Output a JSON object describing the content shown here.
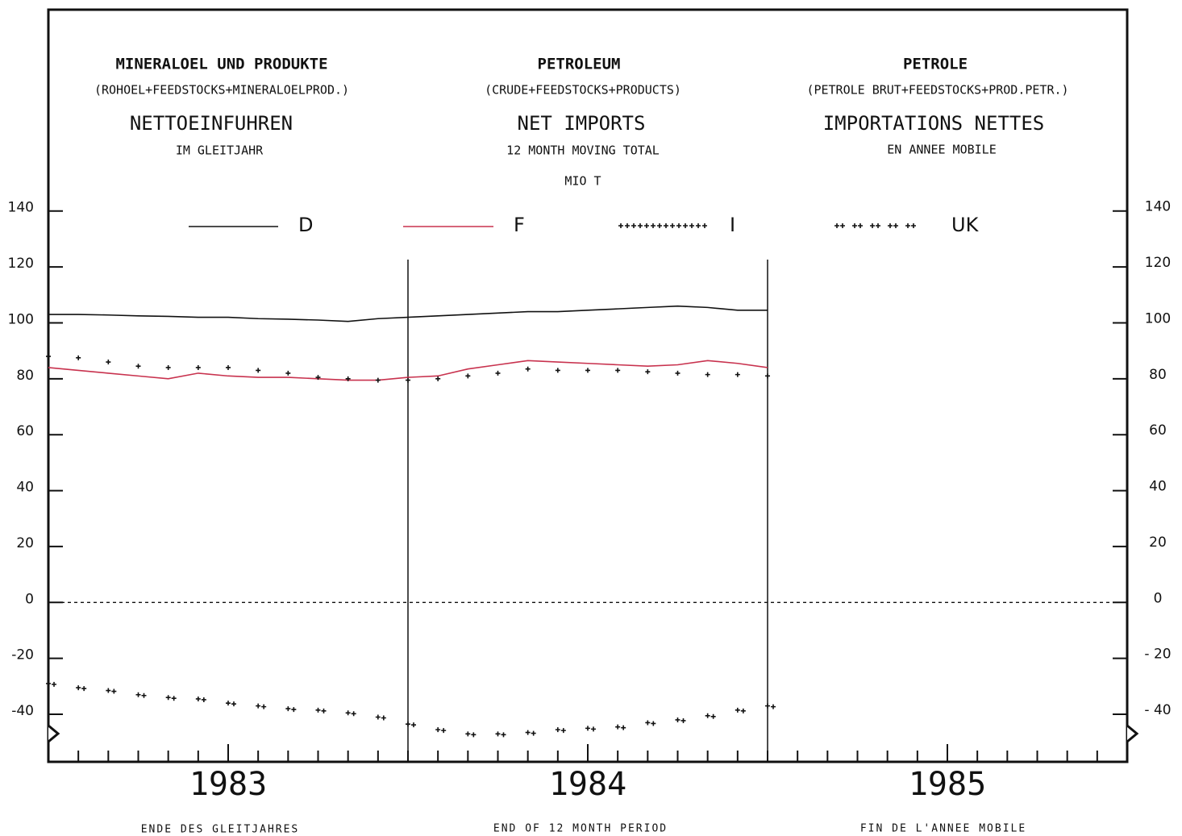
{
  "chart_data": {
    "type": "line",
    "headers": [
      {
        "title": "MINERALOEL UND PRODUKTE",
        "subtitle": "(ROHOEL+FEEDSTOCKS+MINERALOELPROD.)",
        "heading": "NETTOEINFUHREN",
        "period": "IM GLEITJAHR"
      },
      {
        "title": "PETROLEUM",
        "subtitle": "(CRUDE+FEEDSTOCKS+PRODUCTS)",
        "heading": "NET IMPORTS",
        "period": "12 MONTH MOVING TOTAL"
      },
      {
        "title": "PETROLE",
        "subtitle": "(PETROLE BRUT+FEEDSTOCKS+PROD.PETR.)",
        "heading": "IMPORTATIONS NETTES",
        "period": "EN ANNEE MOBILE"
      }
    ],
    "unit": "MIO T",
    "footers": [
      "ENDE DES GLEITJAHRES",
      "END OF 12 MONTH PERIOD",
      "FIN DE L'ANNEE MOBILE"
    ],
    "x": [
      0,
      1,
      2,
      3,
      4,
      5,
      6,
      7,
      8,
      9,
      10,
      11,
      12,
      13,
      14,
      15,
      16,
      17,
      18,
      19,
      20,
      21,
      22,
      23,
      24
    ],
    "xlim": [
      0,
      36
    ],
    "minor_xticks": [
      0,
      1,
      2,
      3,
      4,
      5,
      6,
      7,
      8,
      9,
      10,
      11,
      12,
      13,
      14,
      15,
      16,
      17,
      18,
      19,
      20,
      21,
      22,
      23,
      24,
      25,
      26,
      27,
      28,
      29,
      30,
      31,
      32,
      33,
      34,
      35,
      36
    ],
    "year_labels": [
      {
        "value": 6,
        "label": "1983"
      },
      {
        "value": 18,
        "label": "1984"
      },
      {
        "value": 30,
        "label": "1985"
      }
    ],
    "vlines": [
      12,
      24
    ],
    "ylim": [
      -57,
      212
    ],
    "yticks": [
      140,
      120,
      100,
      80,
      60,
      40,
      20,
      0,
      {
        "value": -20,
        "label": "-20"
      },
      {
        "value": -40,
        "label": "-40"
      }
    ],
    "y2lim": [
      -57,
      212
    ],
    "y2ticks": [
      140,
      120,
      100,
      80,
      60,
      40,
      20,
      0,
      {
        "value": -20,
        "label": "- 20"
      },
      {
        "value": -40,
        "label": "- 40"
      }
    ],
    "zero_line": true,
    "series": [
      {
        "name": "D",
        "color": "#111111",
        "marker": "none",
        "values": [
          103,
          103,
          102.8,
          102.5,
          102.3,
          102,
          102,
          101.5,
          101.3,
          101,
          100.5,
          101.5,
          102,
          102.5,
          103,
          103.5,
          104,
          104,
          104.5,
          105,
          105.5,
          106,
          105.5,
          104.5,
          104.5
        ]
      },
      {
        "name": "F",
        "color": "#c8324e",
        "marker": "none",
        "values": [
          84,
          83,
          82,
          81,
          80,
          82,
          81,
          80.5,
          80.5,
          80,
          79.5,
          79.5,
          80.5,
          81,
          83.5,
          85,
          86.5,
          86,
          85.5,
          85,
          84.5,
          85,
          86.5,
          85.5,
          84
        ]
      },
      {
        "name": "I",
        "color": "#111111",
        "marker": "plus",
        "values": [
          88,
          87.5,
          86,
          84.5,
          84,
          84,
          84,
          83,
          82,
          80.5,
          80,
          79.5,
          79.5,
          80,
          81,
          82,
          83.5,
          83,
          83,
          83,
          82.5,
          82,
          81.5,
          81.5,
          81
        ]
      },
      {
        "name": "UK",
        "color": "#111111",
        "marker": "plus",
        "values": [
          -29,
          -30.5,
          -31.5,
          -33,
          -34,
          -34.5,
          -36,
          -37,
          -38,
          -38.5,
          -39.5,
          -41,
          -43.5,
          -45.5,
          -47,
          -47,
          -46.5,
          -45.5,
          -45,
          -44.5,
          -43,
          -42,
          -40.5,
          -38.5,
          -37
        ]
      }
    ]
  }
}
